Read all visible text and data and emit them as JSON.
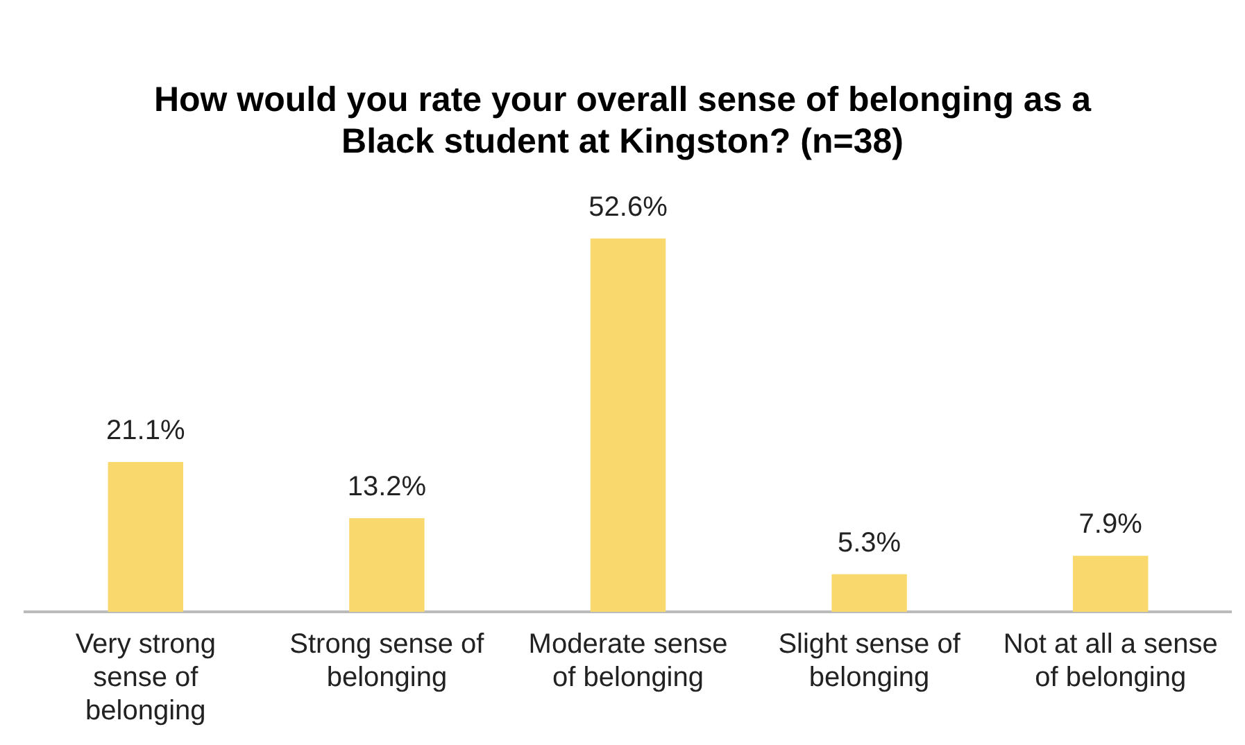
{
  "chart_data": {
    "type": "bar",
    "title": "How would you rate your overall sense of belonging as a Black student at Kingston? (n=38)",
    "categories": [
      "Very strong sense of belonging",
      "Strong sense of belonging",
      "Moderate sense of belonging",
      "Slight sense of belonging",
      "Not at all a sense of belonging"
    ],
    "values": [
      21.1,
      13.2,
      52.6,
      5.3,
      7.9
    ],
    "value_labels": [
      "21.1%",
      "13.2%",
      "52.6%",
      "5.3%",
      "7.9%"
    ],
    "color": "#f9d96e",
    "tick_labels": "x",
    "grid": false,
    "legend": false
  }
}
